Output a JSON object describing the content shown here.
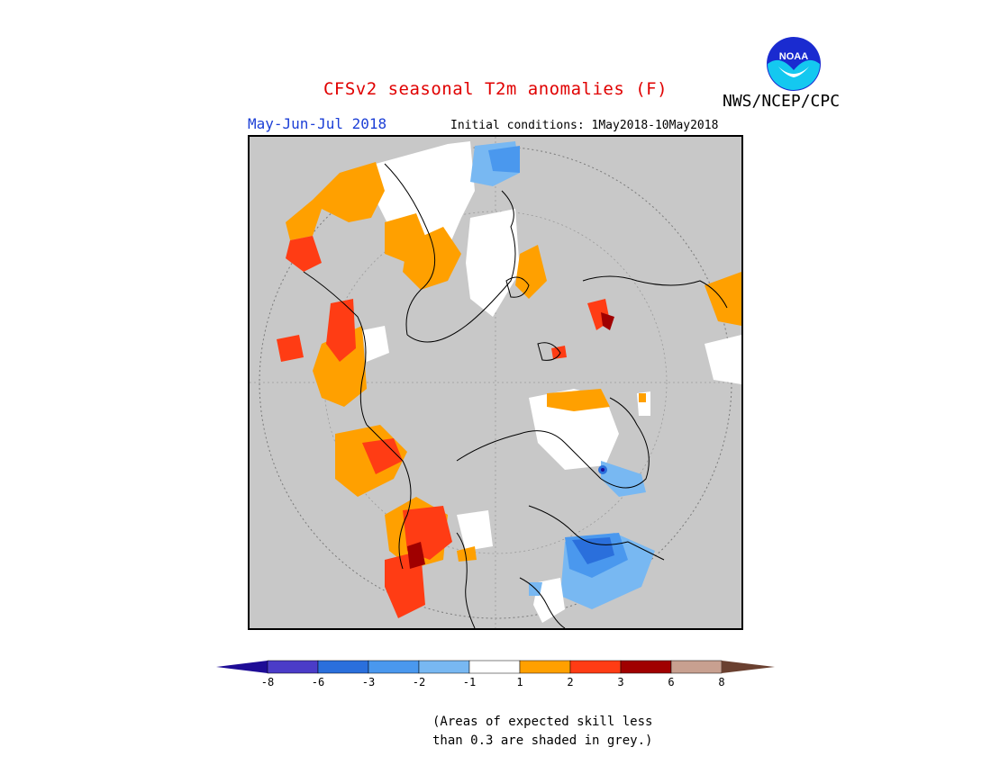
{
  "header": {
    "title": "CFSv2 seasonal T2m anomalies (F)",
    "agency": "NWS/NCEP/CPC",
    "season": "May-Jun-Jul 2018",
    "initial_conditions": "Initial conditions: 1May2018-10May2018",
    "logo_text": "NOAA"
  },
  "legend": {
    "tick_labels": [
      "-8",
      "-6",
      "-3",
      "-2",
      "-1",
      "1",
      "2",
      "3",
      "6",
      "8"
    ],
    "colors": [
      "#1e0c96",
      "#4b3cc8",
      "#2a6fdc",
      "#4a98ee",
      "#78b8f2",
      "#ffffff",
      "#ffa000",
      "#ff3c14",
      "#a00000",
      "#c8a090",
      "#6a4030"
    ],
    "note_line1": "(Areas of expected skill less",
    "note_line2": "than 0.3 are shaded in grey.)"
  },
  "colors": {
    "title": "#e00000",
    "season": "#1c3fd6",
    "skill_mask": "#c8c8c8",
    "coastline": "#000000"
  }
}
